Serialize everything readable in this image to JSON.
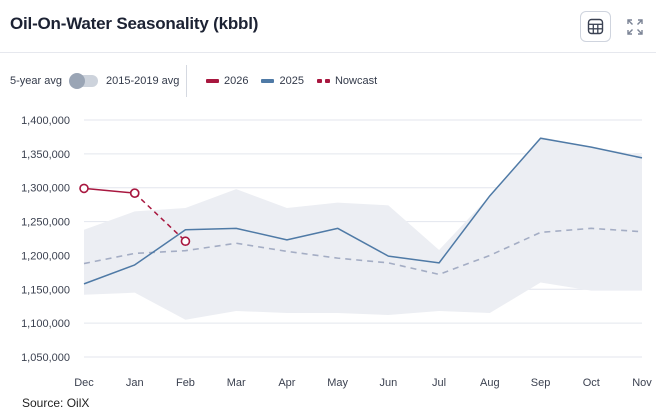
{
  "header": {
    "title": "Oil-On-Water Seasonality (kbbl)",
    "table_icon": "table-icon",
    "expand_icon": "expand-icon"
  },
  "controls": {
    "toggle_left_label": "5-year avg",
    "toggle_right_label": "2015-2019 avg"
  },
  "legend": [
    {
      "label": "2026",
      "color": "#a8173f",
      "style": "solid"
    },
    {
      "label": "2025",
      "color": "#4f7aa6",
      "style": "solid"
    },
    {
      "label": "Nowcast",
      "color": "#a8173f",
      "style": "dashed"
    }
  ],
  "source": "Source: OilX",
  "chart_data": {
    "type": "line",
    "title": "Oil-On-Water Seasonality (kbbl)",
    "categories": [
      "Dec",
      "Jan",
      "Feb",
      "Mar",
      "Apr",
      "May",
      "Jun",
      "Jul",
      "Aug",
      "Sep",
      "Oct",
      "Nov"
    ],
    "ylim": [
      1050000,
      1400000
    ],
    "yticks": [
      1050000,
      1100000,
      1150000,
      1200000,
      1250000,
      1300000,
      1350000,
      1400000
    ],
    "ytick_labels": [
      "1,050,000",
      "1,100,000",
      "1,150,000",
      "1,200,000",
      "1,250,000",
      "1,300,000",
      "1,350,000",
      "1,400,000"
    ],
    "range_band": {
      "name": "5-year range",
      "upper": [
        1238000,
        1265000,
        1270000,
        1298000,
        1270000,
        1278000,
        1274000,
        1208000,
        1288000,
        1375000,
        1360000,
        1348000
      ],
      "lower": [
        1142000,
        1145000,
        1105000,
        1118000,
        1115000,
        1115000,
        1112000,
        1118000,
        1115000,
        1160000,
        1148000,
        1148000
      ]
    },
    "series": [
      {
        "name": "5-year avg",
        "style": "dashed",
        "color": "#a4adc4",
        "values": [
          1188000,
          1203000,
          1207000,
          1218000,
          1206000,
          1196000,
          1189000,
          1172000,
          1200000,
          1234000,
          1240000,
          1235000
        ]
      },
      {
        "name": "2025",
        "style": "solid",
        "color": "#4f7aa6",
        "values": [
          1158000,
          1186000,
          1238000,
          1240000,
          1223000,
          1240000,
          1199000,
          1189000,
          1288000,
          1373000,
          1360000,
          1344000
        ]
      },
      {
        "name": "2026",
        "style": "solid",
        "color": "#a8173f",
        "markers": true,
        "values": [
          1299000,
          1292000,
          null,
          null,
          null,
          null,
          null,
          null,
          null,
          null,
          null,
          null
        ]
      },
      {
        "name": "Nowcast",
        "style": "dashed",
        "color": "#a8173f",
        "markers": true,
        "values": [
          null,
          1292000,
          1221000,
          null,
          null,
          null,
          null,
          null,
          null,
          null,
          null,
          null
        ]
      }
    ]
  }
}
